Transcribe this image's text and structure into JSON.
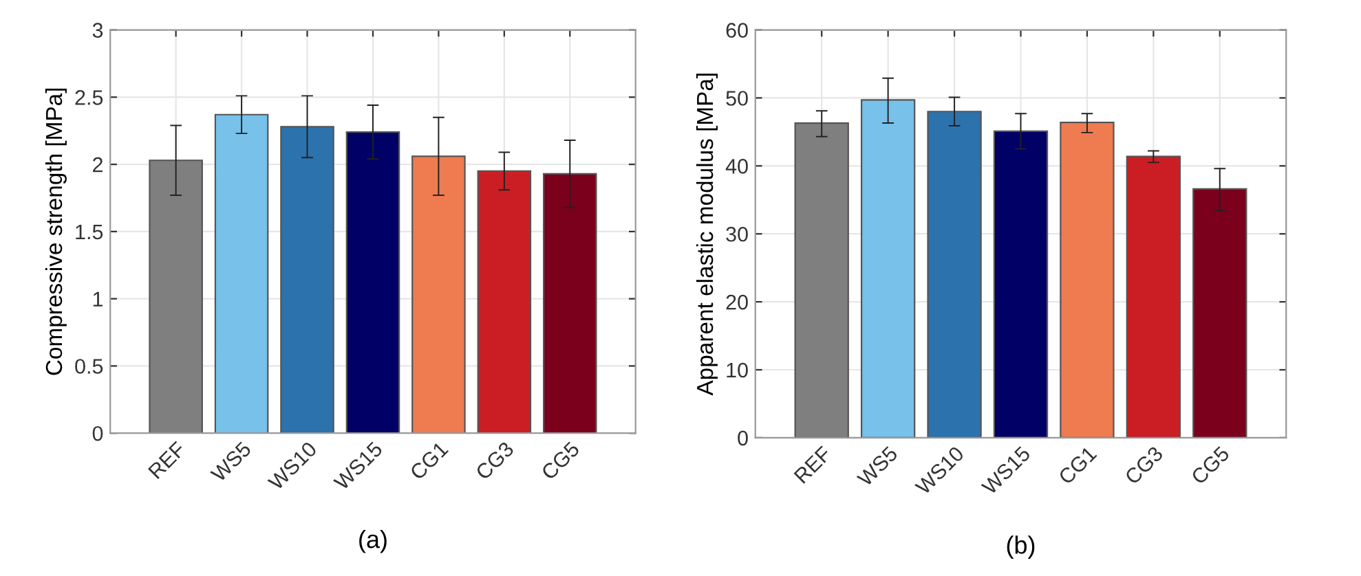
{
  "chart_data": [
    {
      "type": "bar",
      "ylabel": "Compressive strength [MPa]",
      "categories": [
        "REF",
        "WS5",
        "WS10",
        "WS15",
        "CG1",
        "CG3",
        "CG5"
      ],
      "values": [
        2.03,
        2.37,
        2.28,
        2.24,
        2.06,
        1.95,
        1.93
      ],
      "colors": [
        "#7f7f7f",
        "#77c1ea",
        "#2c72ad",
        "#000066",
        "#ef7b51",
        "#cb1e24",
        "#7a001c"
      ],
      "errors": [
        [
          1.77,
          2.29
        ],
        [
          2.23,
          2.51
        ],
        [
          2.05,
          2.51
        ],
        [
          2.04,
          2.44
        ],
        [
          1.77,
          2.35
        ],
        [
          1.81,
          2.09
        ],
        [
          1.68,
          2.18
        ]
      ],
      "ylim": [
        0,
        3
      ],
      "yticks": [
        0,
        0.5,
        1,
        1.5,
        2,
        2.5,
        3
      ],
      "grid": true,
      "annotations": [
        "(a)"
      ]
    },
    {
      "type": "bar",
      "ylabel": "Apparent elastic modulus [MPa]",
      "categories": [
        "REF",
        "WS5",
        "WS10",
        "WS15",
        "CG1",
        "CG3",
        "CG5"
      ],
      "values": [
        46.3,
        49.7,
        48.0,
        45.1,
        46.4,
        41.4,
        36.6
      ],
      "colors": [
        "#7f7f7f",
        "#77c1ea",
        "#2c72ad",
        "#000066",
        "#ef7b51",
        "#cb1e24",
        "#7a001c"
      ],
      "errors": [
        [
          44.3,
          48.1
        ],
        [
          46.3,
          52.9
        ],
        [
          45.9,
          50.1
        ],
        [
          42.5,
          47.7
        ],
        [
          44.9,
          47.7
        ],
        [
          40.5,
          42.2
        ],
        [
          33.4,
          39.6
        ]
      ],
      "ylim": [
        0,
        60
      ],
      "yticks": [
        0,
        10,
        20,
        30,
        40,
        50,
        60
      ],
      "grid": true,
      "annotations": [
        "(b)"
      ]
    }
  ]
}
